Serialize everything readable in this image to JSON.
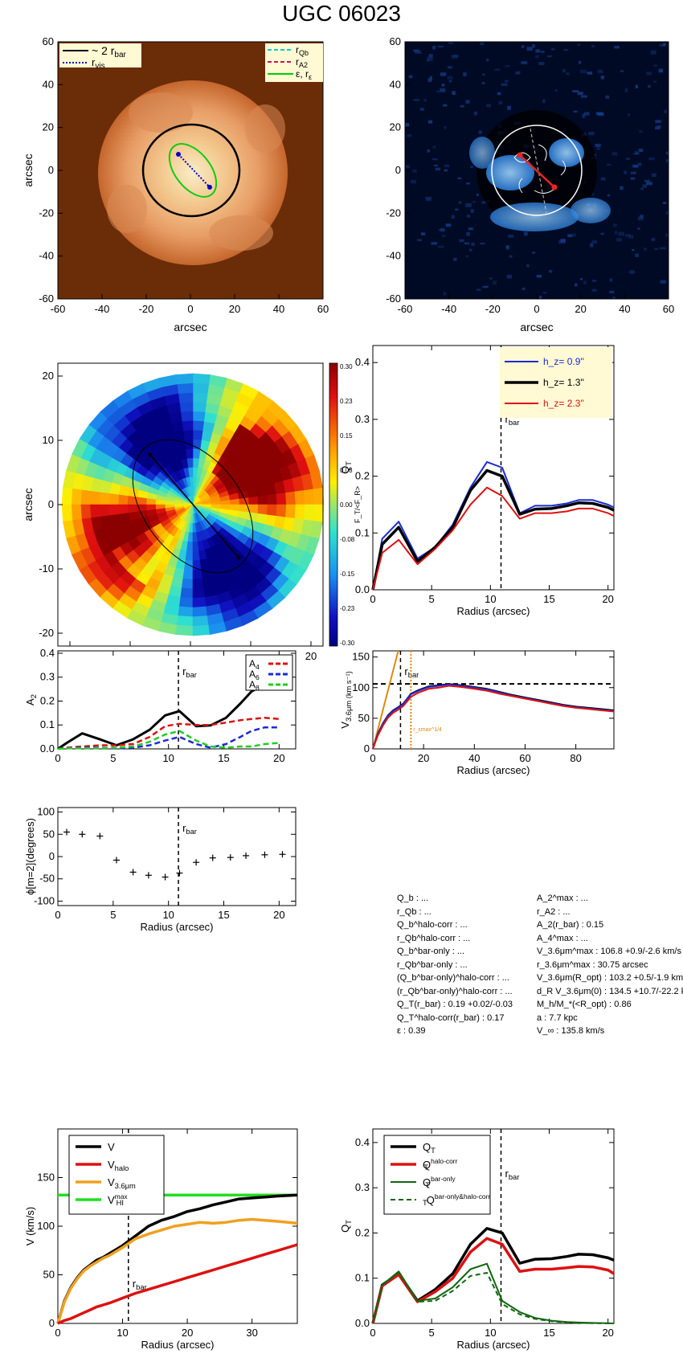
{
  "title": "UGC 06023",
  "panels": {
    "image": {
      "xlabel": "arcsec",
      "ylabel": "arcsec",
      "ticks": [
        -60,
        -40,
        -20,
        0,
        20,
        40,
        60
      ],
      "legend_left": [
        {
          "label": "~ 2 r_bar",
          "color": "#000000",
          "style": "solid"
        },
        {
          "label": "r_vis",
          "color": "#0000cc",
          "style": "dotted"
        }
      ],
      "legend_right": [
        {
          "label": "r_Qb",
          "color": "#00d0d0",
          "style": "dashed"
        },
        {
          "label": "r_A2",
          "color": "#d01060",
          "style": "dashed"
        },
        {
          "label": "ε, r_ε",
          "color": "#00cc00",
          "style": "solid"
        }
      ],
      "colors": {
        "bg": "#6b2c08",
        "disk": "#e8a070",
        "core": "#fff4c8"
      }
    },
    "residual": {
      "xlabel": "arcsec",
      "ticks": [
        -60,
        -40,
        -20,
        0,
        20,
        40,
        60
      ],
      "colors": {
        "bg": "#000a20",
        "feature": "#6fb4ff"
      }
    },
    "ratio_map": {
      "xlabel": "arcsec",
      "ylabel": "arcsec",
      "ticks": [
        -20,
        -10,
        0,
        10,
        20
      ],
      "colorbar_ticks": [
        "0.30",
        "0.23",
        "0.15",
        "0.08",
        "0.00",
        "-0.08",
        "-0.15",
        "-0.23",
        "-0.30"
      ],
      "colorbar_label": "F_T/<F_R>"
    }
  },
  "chart_data": [
    {
      "id": "qt_hz",
      "type": "line",
      "xlabel": "Radius (arcsec)",
      "ylabel": "Q_T",
      "xlim": [
        0,
        20.5
      ],
      "ylim": [
        0,
        0.43
      ],
      "xticks": [
        0,
        5,
        10,
        15,
        20
      ],
      "yticks": [
        "0.0",
        "0.1",
        "0.2",
        "0.3",
        "0.4"
      ],
      "vline": 10.9,
      "vline_label": "r_bar",
      "legend": [
        "h_z=  0.9''",
        "h_z=  1.3''",
        "h_z=  2.3''"
      ],
      "x": [
        0,
        0.8,
        2.2,
        3.8,
        5.3,
        6.8,
        8.3,
        9.7,
        11.0,
        12.5,
        13.8,
        15.2,
        16.5,
        17.5,
        18.7,
        20.0,
        20.5
      ],
      "series": [
        {
          "name": "h_z=  0.9''",
          "color": "#1a2bd6",
          "width": 2,
          "values": [
            0,
            0.09,
            0.12,
            0.055,
            0.075,
            0.115,
            0.18,
            0.225,
            0.215,
            0.135,
            0.148,
            0.148,
            0.152,
            0.158,
            0.158,
            0.15,
            0.145
          ]
        },
        {
          "name": "h_z=  1.3''",
          "color": "#000000",
          "width": 3.5,
          "values": [
            0,
            0.08,
            0.11,
            0.05,
            0.075,
            0.11,
            0.175,
            0.21,
            0.2,
            0.133,
            0.142,
            0.143,
            0.148,
            0.153,
            0.152,
            0.145,
            0.14
          ]
        },
        {
          "name": "h_z=  2.3''",
          "color": "#dd1111",
          "width": 2,
          "values": [
            0,
            0.065,
            0.088,
            0.045,
            0.072,
            0.105,
            0.15,
            0.18,
            0.165,
            0.125,
            0.135,
            0.135,
            0.138,
            0.143,
            0.143,
            0.135,
            0.13
          ]
        }
      ]
    },
    {
      "id": "a_m",
      "type": "line",
      "xlabel": "",
      "ylabel": "A_2",
      "xlim": [
        0,
        21.5
      ],
      "ylim": [
        0,
        0.41
      ],
      "xticks": [
        0,
        5,
        10,
        15,
        20
      ],
      "yticks": [
        "0.0",
        "0.1",
        "0.2",
        "0.3",
        "0.4"
      ],
      "vline": 10.9,
      "vline_label": "r_bar",
      "legend": [
        "A_4",
        "A_6",
        "A_8"
      ],
      "x": [
        0,
        0.8,
        2.2,
        3.8,
        5.3,
        6.8,
        8.3,
        9.7,
        11.0,
        12.5,
        13.8,
        15.2,
        16.5,
        17.5,
        18.7,
        20.0
      ],
      "series": [
        {
          "name": "A_2",
          "color": "#000000",
          "width": 3,
          "dash": "",
          "values": [
            0,
            0.025,
            0.065,
            0.04,
            0.015,
            0.04,
            0.08,
            0.14,
            0.158,
            0.095,
            0.098,
            0.13,
            0.19,
            0.24,
            0.27,
            0.265
          ]
        },
        {
          "name": "A_4",
          "color": "#dd1111",
          "width": 2.5,
          "dash": "7,4",
          "values": [
            0,
            0.005,
            0.01,
            0.015,
            0.015,
            0.02,
            0.05,
            0.095,
            0.105,
            0.1,
            0.1,
            0.11,
            0.12,
            0.125,
            0.13,
            0.125
          ]
        },
        {
          "name": "A_6",
          "color": "#1a2bd6",
          "width": 2.5,
          "dash": "7,4",
          "values": [
            0,
            0.003,
            0.005,
            0.005,
            0.003,
            0.005,
            0.015,
            0.035,
            0.05,
            0.02,
            0.005,
            0.02,
            0.05,
            0.075,
            0.09,
            0.09
          ]
        },
        {
          "name": "A_8",
          "color": "#22cc22",
          "width": 2.5,
          "dash": "7,4",
          "values": [
            0,
            0.002,
            0.003,
            0.003,
            0.005,
            0.01,
            0.03,
            0.06,
            0.075,
            0.035,
            0.01,
            0.005,
            0.01,
            0.01,
            0.02,
            0.025
          ]
        }
      ]
    },
    {
      "id": "v36",
      "type": "line",
      "xlabel": "Radius (arcsec)",
      "ylabel": "V_3.6μm (km s⁻¹)",
      "xlim": [
        0,
        95
      ],
      "ylim": [
        0,
        160
      ],
      "xticks": [
        0,
        20,
        40,
        60,
        80
      ],
      "yticks": [
        "0",
        "50",
        "100",
        "150"
      ],
      "hline": 106,
      "vline": 10.9,
      "vline_label": "r_bar",
      "vline2": 15.0,
      "vline2_label": "r_εmax^1/4",
      "x": [
        0,
        2,
        4,
        6,
        8,
        10,
        12,
        15,
        18,
        22,
        26,
        30,
        35,
        40,
        45,
        50,
        55,
        60,
        65,
        70,
        75,
        80,
        85,
        90,
        95
      ],
      "series": [
        {
          "name": "V",
          "color": "#000000",
          "width": 2,
          "values": [
            0,
            25,
            42,
            55,
            63,
            68,
            74,
            90,
            96,
            102,
            104,
            106,
            104,
            101,
            98,
            93,
            88,
            84,
            80,
            76,
            72,
            69,
            67,
            65,
            63
          ]
        },
        {
          "name": "Vhz",
          "color": "#1a2bd6",
          "width": 2,
          "values": [
            0,
            24,
            41,
            54,
            62,
            67,
            73,
            89,
            95,
            101,
            103,
            105,
            103,
            100,
            97,
            92,
            87,
            83,
            79,
            75,
            71,
            68,
            66,
            64,
            62
          ]
        },
        {
          "name": "Vred",
          "color": "#dd1111",
          "width": 2,
          "values": [
            0,
            22,
            38,
            51,
            59,
            64,
            70,
            85,
            92,
            98,
            100,
            103,
            101,
            98,
            95,
            90,
            86,
            82,
            78,
            74,
            70,
            67,
            65,
            63,
            61
          ]
        }
      ],
      "extra_line": {
        "color": "#e08a10",
        "x": [
          0,
          10
        ],
        "y": [
          0,
          185
        ]
      }
    },
    {
      "id": "phase",
      "type": "scatter",
      "xlabel": "Radius (arcsec)",
      "ylabel": "ϕ[m=2](degrees)",
      "xlim": [
        0,
        21.5
      ],
      "ylim": [
        -110,
        110
      ],
      "xticks": [
        0,
        5,
        10,
        15,
        20
      ],
      "yticks": [
        "-100",
        "-50",
        "0",
        "50",
        "100"
      ],
      "vline": 10.9,
      "vline_label": "r_bar",
      "x": [
        0.8,
        2.2,
        3.8,
        5.3,
        6.8,
        8.2,
        9.7,
        11.0,
        12.5,
        14.0,
        15.6,
        17.0,
        18.7,
        20.3
      ],
      "y": [
        55,
        50,
        46,
        -8,
        -35,
        -42,
        -46,
        -37,
        -13,
        -3,
        -2,
        2,
        4,
        5
      ]
    },
    {
      "id": "vcomp",
      "type": "line",
      "xlabel": "Radius (arcsec)",
      "ylabel": "V (km/s)",
      "xlim": [
        0,
        37
      ],
      "ylim": [
        0,
        200
      ],
      "xticks": [
        0,
        10,
        20,
        30
      ],
      "yticks": [
        "0",
        "50",
        "100",
        "150"
      ],
      "vline": 10.9,
      "vline_label": "r_bar",
      "legend": [
        "V",
        "V_halo",
        "V_3.6μm",
        "V_HI^max"
      ],
      "hline": 132,
      "x": [
        0,
        1,
        2,
        3,
        4,
        5,
        6,
        7,
        8,
        10,
        12,
        14,
        16,
        18,
        20,
        22,
        24,
        26,
        28,
        30,
        32,
        34,
        37
      ],
      "series": [
        {
          "name": "V",
          "color": "#000000",
          "width": 3.5,
          "values": [
            0,
            23,
            37,
            47,
            55,
            60,
            65,
            68,
            72,
            80,
            90,
            100,
            106,
            110,
            115,
            118,
            122,
            125,
            128,
            129,
            130,
            131,
            132
          ]
        },
        {
          "name": "V_3.6μm",
          "color": "#f0a020",
          "width": 3.5,
          "values": [
            0,
            22,
            36,
            46,
            54,
            59,
            63,
            67,
            70,
            78,
            87,
            92,
            96,
            100,
            102,
            104,
            103,
            104,
            106,
            107,
            106,
            105,
            103
          ]
        },
        {
          "name": "V_halo",
          "color": "#dd1111",
          "width": 3.5,
          "values": [
            0,
            3,
            5,
            8,
            11,
            14,
            17,
            19,
            21,
            26,
            31,
            35,
            39,
            43,
            47,
            51,
            55,
            59,
            63,
            67,
            71,
            75,
            81
          ]
        }
      ]
    },
    {
      "id": "qt_corr",
      "type": "line",
      "xlabel": "Radius (arcsec)",
      "ylabel": "Q_T",
      "xlim": [
        0,
        20.5
      ],
      "ylim": [
        0,
        0.43
      ],
      "xticks": [
        0,
        5,
        10,
        15,
        20
      ],
      "yticks": [
        "0.0",
        "0.1",
        "0.2",
        "0.3",
        "0.4"
      ],
      "vline": 10.9,
      "vline_label": "r_bar",
      "legend": [
        "Q_T",
        "Q_T^halo-corr",
        "Q_T^bar-only",
        "Q_T^bar-only&halo-corr"
      ],
      "x": [
        0,
        0.8,
        2.2,
        3.8,
        5.3,
        6.8,
        8.3,
        9.7,
        11.0,
        12.5,
        13.8,
        15.2,
        16.5,
        17.5,
        18.7,
        20.0,
        20.5
      ],
      "series": [
        {
          "name": "Q_T",
          "color": "#000000",
          "width": 3.5,
          "dash": "",
          "values": [
            0,
            0.085,
            0.11,
            0.05,
            0.075,
            0.11,
            0.175,
            0.21,
            0.2,
            0.133,
            0.142,
            0.143,
            0.148,
            0.153,
            0.152,
            0.145,
            0.14
          ]
        },
        {
          "name": "Q_T^halo-corr",
          "color": "#dd1111",
          "width": 3.5,
          "dash": "",
          "values": [
            0,
            0.083,
            0.108,
            0.048,
            0.07,
            0.1,
            0.158,
            0.188,
            0.175,
            0.115,
            0.12,
            0.12,
            0.123,
            0.126,
            0.125,
            0.118,
            0.11
          ]
        },
        {
          "name": "Q_T^bar-only",
          "color": "#116611",
          "width": 2,
          "dash": "",
          "values": [
            0,
            0.085,
            0.115,
            0.05,
            0.055,
            0.08,
            0.12,
            0.132,
            0.05,
            0.025,
            0.012,
            0.006,
            0.003,
            0.002,
            0.001,
            0.0005,
            0
          ]
        },
        {
          "name": "Q_T^bar-only&halo-corr",
          "color": "#116611",
          "width": 2,
          "dash": "6,4",
          "values": [
            0,
            0.085,
            0.112,
            0.048,
            0.05,
            0.072,
            0.105,
            0.112,
            0.043,
            0.02,
            0.01,
            0.005,
            0.002,
            0.001,
            0.0005,
            0.0002,
            0
          ]
        }
      ]
    }
  ],
  "stats": {
    "left": [
      "Q_b : ...",
      "r_Qb : ...",
      "Q_b^halo-corr : ...",
      "r_Qb^halo-corr : ...",
      "Q_b^bar-only : ...",
      "r_Qb^bar-only : ...",
      "(Q_b^bar-only)^halo-corr : ...",
      "(r_Qb^bar-only)^halo-corr : ...",
      "Q_T(r_bar) :  0.19 +0.02/-0.03",
      "Q_T^halo-corr(r_bar) :  0.17",
      "ε :  0.39"
    ],
    "right": [
      "A_2^max : ...",
      "r_A2 : ...",
      "A_2(r_bar) :  0.15",
      "A_4^max : ...",
      "V_3.6μm^max :  106.8 +0.9/-2.6 km/s",
      "r_3.6μm^max :  30.75 arcsec",
      "V_3.6μm(R_opt) :  103.2 +0.5/-1.9 km/s",
      "d_R V_3.6μm(0) :  134.5 +10.7/-22.2 km/s/kpc",
      "M_h/M_*(<R_opt) :  0.86",
      "a :  7.7 kpc",
      "V_∞ :  135.8 km/s"
    ]
  }
}
